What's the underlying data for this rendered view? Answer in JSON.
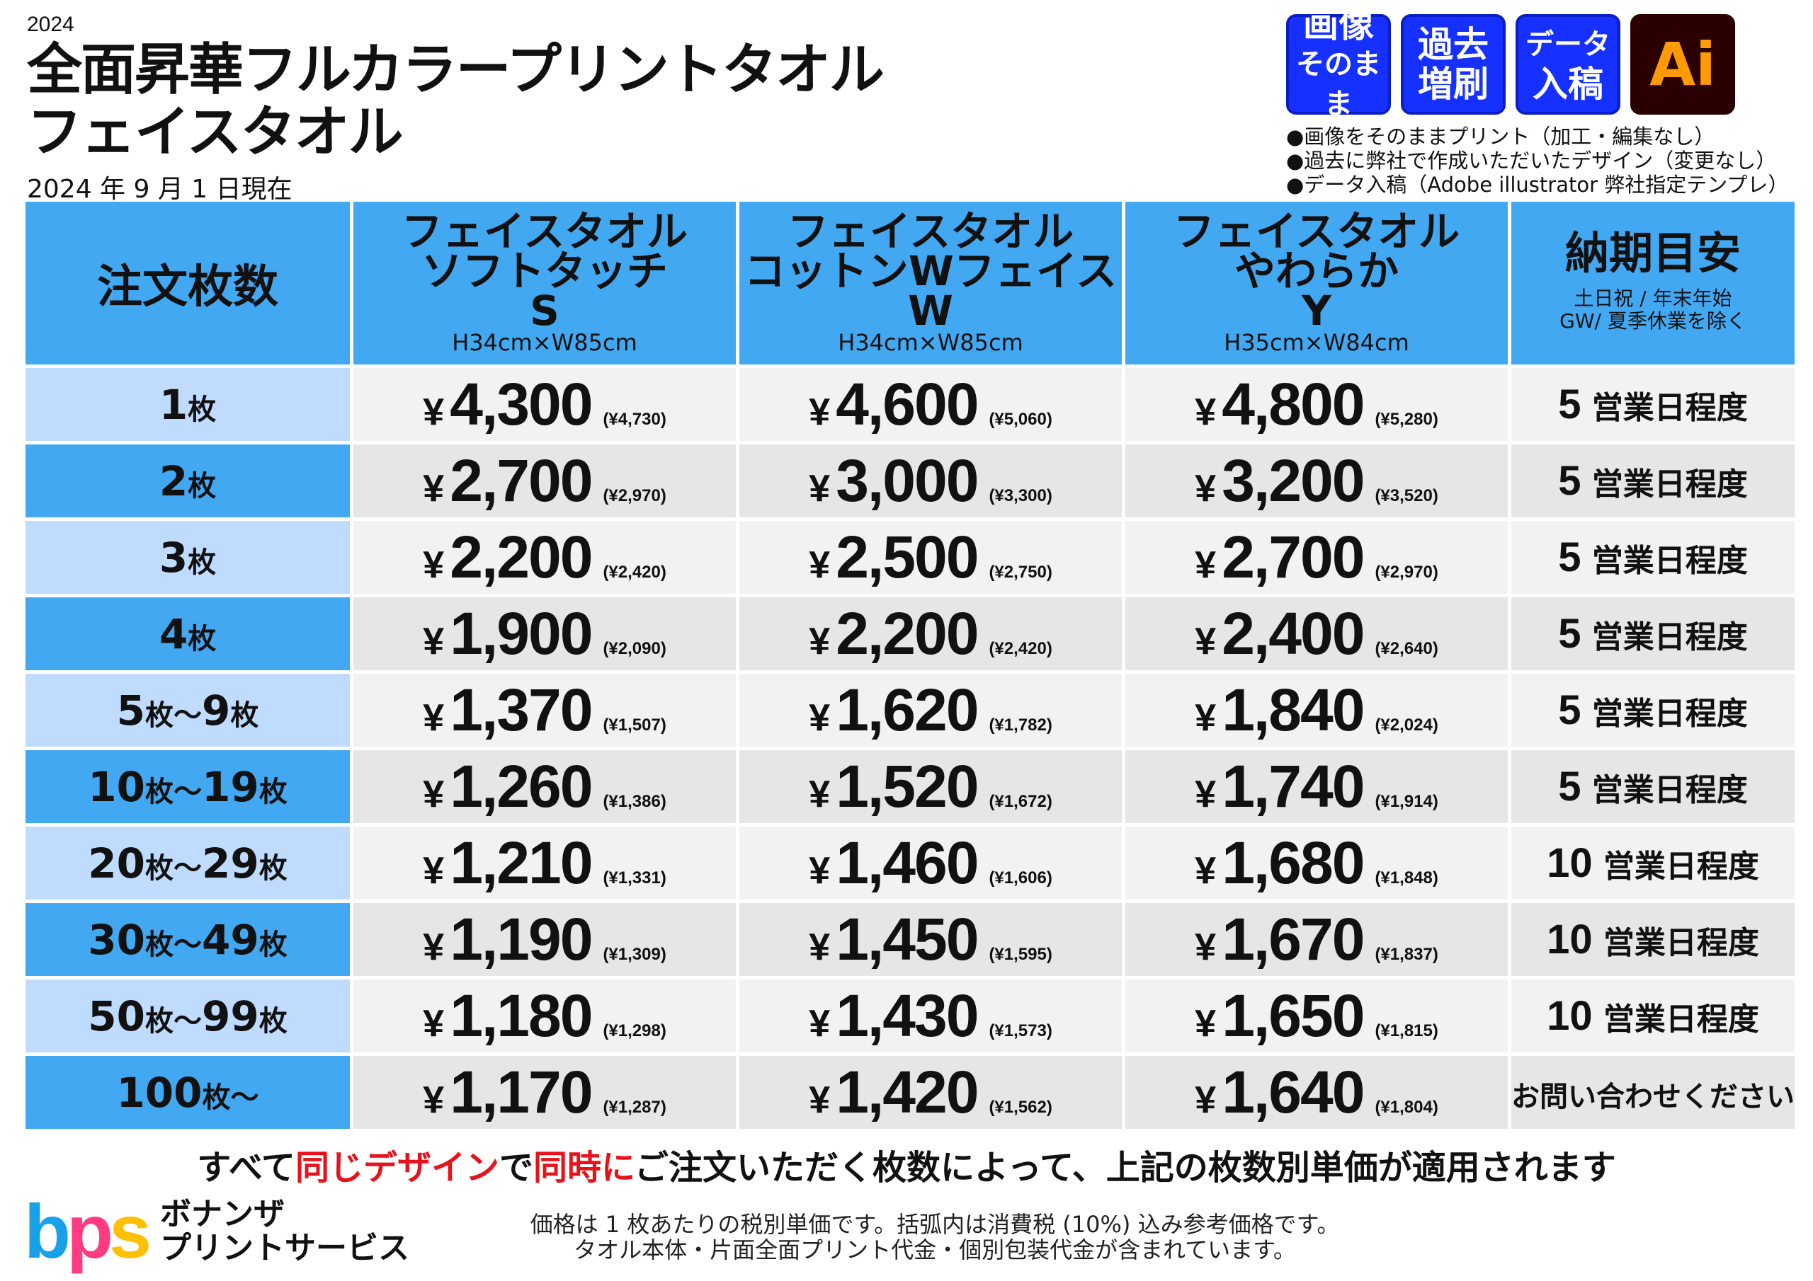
{
  "header": {
    "year": "2024",
    "title_line1": "全面昇華フルカラープリントタオル",
    "title_line2": "フェイスタオル",
    "as_of": "2024 年 9 月 1 日現在"
  },
  "badges": [
    {
      "line1": "画像",
      "line2": "そのまま"
    },
    {
      "line1": "過去",
      "line2": "増刷"
    },
    {
      "line1": "データ",
      "line2": "入稿"
    },
    {
      "label": "Ai"
    }
  ],
  "notes": [
    "●画像をそのままプリント（加工・編集なし）",
    "●過去に弊社で作成いただいたデザイン（変更なし）",
    "●データ入稿（Adobe illustrator 弊社指定テンプレ）"
  ],
  "table": {
    "qty_header": "注文枚数",
    "products": [
      {
        "line1": "フェイスタオル",
        "line2": "ソフトタッチ",
        "code": "S",
        "size": "H34cm×W85cm"
      },
      {
        "line1": "フェイスタオル",
        "line2": "コットンWフェイス",
        "code": "W",
        "size": "H34cm×W85cm"
      },
      {
        "line1": "フェイスタオル",
        "line2": "やわらか",
        "code": "Y",
        "size": "H35cm×W84cm"
      }
    ],
    "delivery_header": {
      "title": "納期目安",
      "sub1": "土日祝 / 年末年始",
      "sub2": "GW/ 夏季休業を除く"
    },
    "yen": "¥",
    "rows": [
      {
        "qty": [
          {
            "n": "1",
            "u": "枚"
          }
        ],
        "prices": [
          [
            "4,300",
            "(¥4,730)"
          ],
          [
            "4,600",
            "(¥5,060)"
          ],
          [
            "4,800",
            "(¥5,280)"
          ]
        ],
        "delivery": {
          "num": "5",
          "text": "営業日程度"
        }
      },
      {
        "qty": [
          {
            "n": "2",
            "u": "枚"
          }
        ],
        "prices": [
          [
            "2,700",
            "(¥2,970)"
          ],
          [
            "3,000",
            "(¥3,300)"
          ],
          [
            "3,200",
            "(¥3,520)"
          ]
        ],
        "delivery": {
          "num": "5",
          "text": "営業日程度"
        }
      },
      {
        "qty": [
          {
            "n": "3",
            "u": "枚"
          }
        ],
        "prices": [
          [
            "2,200",
            "(¥2,420)"
          ],
          [
            "2,500",
            "(¥2,750)"
          ],
          [
            "2,700",
            "(¥2,970)"
          ]
        ],
        "delivery": {
          "num": "5",
          "text": "営業日程度"
        }
      },
      {
        "qty": [
          {
            "n": "4",
            "u": "枚"
          }
        ],
        "prices": [
          [
            "1,900",
            "(¥2,090)"
          ],
          [
            "2,200",
            "(¥2,420)"
          ],
          [
            "2,400",
            "(¥2,640)"
          ]
        ],
        "delivery": {
          "num": "5",
          "text": "営業日程度"
        }
      },
      {
        "qty": [
          {
            "n": "5",
            "u": "枚～"
          },
          {
            "n": "9",
            "u": "枚"
          }
        ],
        "prices": [
          [
            "1,370",
            "(¥1,507)"
          ],
          [
            "1,620",
            "(¥1,782)"
          ],
          [
            "1,840",
            "(¥2,024)"
          ]
        ],
        "delivery": {
          "num": "5",
          "text": "営業日程度"
        }
      },
      {
        "qty": [
          {
            "n": "10",
            "u": "枚～"
          },
          {
            "n": "19",
            "u": "枚"
          }
        ],
        "prices": [
          [
            "1,260",
            "(¥1,386)"
          ],
          [
            "1,520",
            "(¥1,672)"
          ],
          [
            "1,740",
            "(¥1,914)"
          ]
        ],
        "delivery": {
          "num": "5",
          "text": "営業日程度"
        }
      },
      {
        "qty": [
          {
            "n": "20",
            "u": "枚～"
          },
          {
            "n": "29",
            "u": "枚"
          }
        ],
        "prices": [
          [
            "1,210",
            "(¥1,331)"
          ],
          [
            "1,460",
            "(¥1,606)"
          ],
          [
            "1,680",
            "(¥1,848)"
          ]
        ],
        "delivery": {
          "num": "10",
          "text": "営業日程度"
        }
      },
      {
        "qty": [
          {
            "n": "30",
            "u": "枚～"
          },
          {
            "n": "49",
            "u": "枚"
          }
        ],
        "prices": [
          [
            "1,190",
            "(¥1,309)"
          ],
          [
            "1,450",
            "(¥1,595)"
          ],
          [
            "1,670",
            "(¥1,837)"
          ]
        ],
        "delivery": {
          "num": "10",
          "text": "営業日程度"
        }
      },
      {
        "qty": [
          {
            "n": "50",
            "u": "枚～"
          },
          {
            "n": "99",
            "u": "枚"
          }
        ],
        "prices": [
          [
            "1,180",
            "(¥1,298)"
          ],
          [
            "1,430",
            "(¥1,573)"
          ],
          [
            "1,650",
            "(¥1,815)"
          ]
        ],
        "delivery": {
          "num": "10",
          "text": "営業日程度"
        }
      },
      {
        "qty": [
          {
            "n": "100",
            "u": "枚～"
          }
        ],
        "prices": [
          [
            "1,170",
            "(¥1,287)"
          ],
          [
            "1,420",
            "(¥1,562)"
          ],
          [
            "1,640",
            "(¥1,804)"
          ]
        ],
        "delivery": {
          "num": "",
          "text": "お問い合わせください"
        }
      }
    ]
  },
  "bottom_line": {
    "p1": "すべて",
    "p2": "同じデザイン",
    "p3": "で",
    "p4": "同時に",
    "p5": "ご注文いただく枚数によって、上記の枚数別単価が適用されます"
  },
  "logo": {
    "mark": "bps",
    "line1": "ボナンザ",
    "line2": "プリントサービス"
  },
  "footer": {
    "line1": "価格は 1 枚あたりの税別単価です。括弧内は消費税 (10%) 込み参考価格です。",
    "line2": "タオル本体・片面全面プリント代金・個別包装代金が含まれています。"
  },
  "colors": {
    "header_blue": "#42a8f2",
    "light_blue": "#bfdcff",
    "red": "#e8121b",
    "badge_blue": "#1530ff"
  }
}
